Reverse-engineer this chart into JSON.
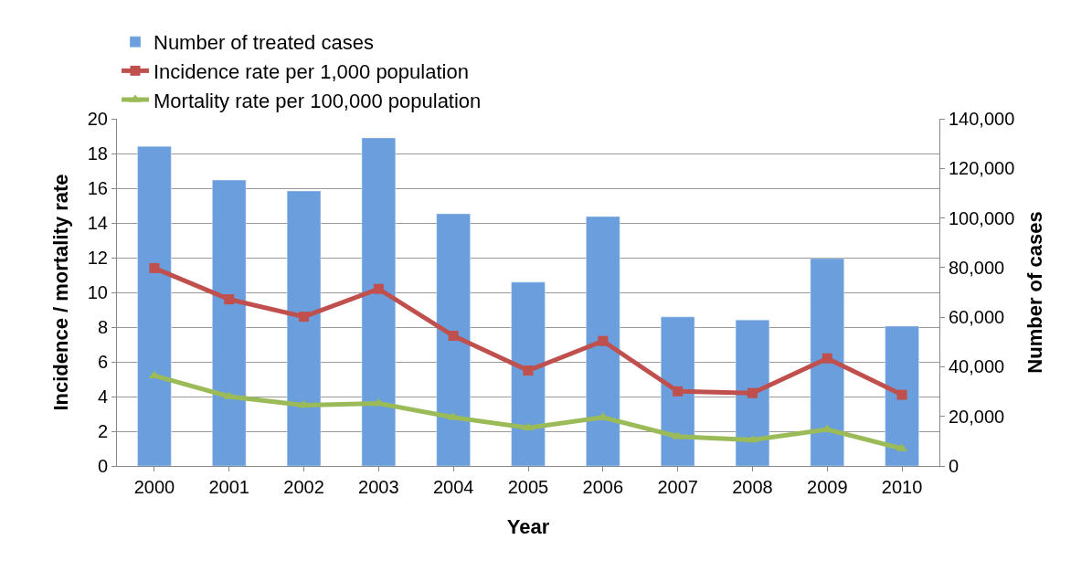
{
  "chart_data": {
    "type": "bar",
    "xlabel": "Year",
    "ylabel": "Incidence / mortality rate",
    "y2label": "Number of cases",
    "categories": [
      "2000",
      "2001",
      "2002",
      "2003",
      "2004",
      "2005",
      "2006",
      "2007",
      "2008",
      "2009",
      "2010"
    ],
    "series": [
      {
        "name": "Number of treated cases",
        "axis": "y2",
        "color": "#6a9edc",
        "values": [
          128900,
          115300,
          110900,
          132300,
          101700,
          74100,
          100600,
          60100,
          58900,
          83600,
          56400
        ]
      },
      {
        "name": "Incidence rate per 1,000 population",
        "type": "line",
        "marker": "square",
        "color": "#c0504d",
        "values": [
          11.4,
          9.6,
          8.6,
          10.2,
          7.5,
          5.5,
          7.2,
          4.3,
          4.2,
          6.2,
          4.1
        ]
      },
      {
        "name": "Mortality rate per 100,000 population",
        "type": "line",
        "marker": "triangle",
        "color": "#9bbb59",
        "values": [
          5.2,
          4.0,
          3.5,
          3.6,
          2.8,
          2.2,
          2.8,
          1.7,
          1.5,
          2.1,
          1.0
        ]
      }
    ],
    "ylim": [
      0,
      20
    ],
    "yticks": [
      0,
      2,
      4,
      6,
      8,
      10,
      12,
      14,
      16,
      18,
      20
    ],
    "y2lim": [
      0,
      140000
    ],
    "y2ticks": [
      {
        "value": 0,
        "label": "0"
      },
      {
        "value": 20000,
        "label": "20,000"
      },
      {
        "value": 40000,
        "label": "40,000"
      },
      {
        "value": 60000,
        "label": "60,000"
      },
      {
        "value": 80000,
        "label": "80,000"
      },
      {
        "value": 100000,
        "label": "100,000"
      },
      {
        "value": 120000,
        "label": "120,000"
      },
      {
        "value": 140000,
        "label": "140,000"
      }
    ],
    "grid": "y",
    "legend": "top",
    "line_style": "solid"
  }
}
